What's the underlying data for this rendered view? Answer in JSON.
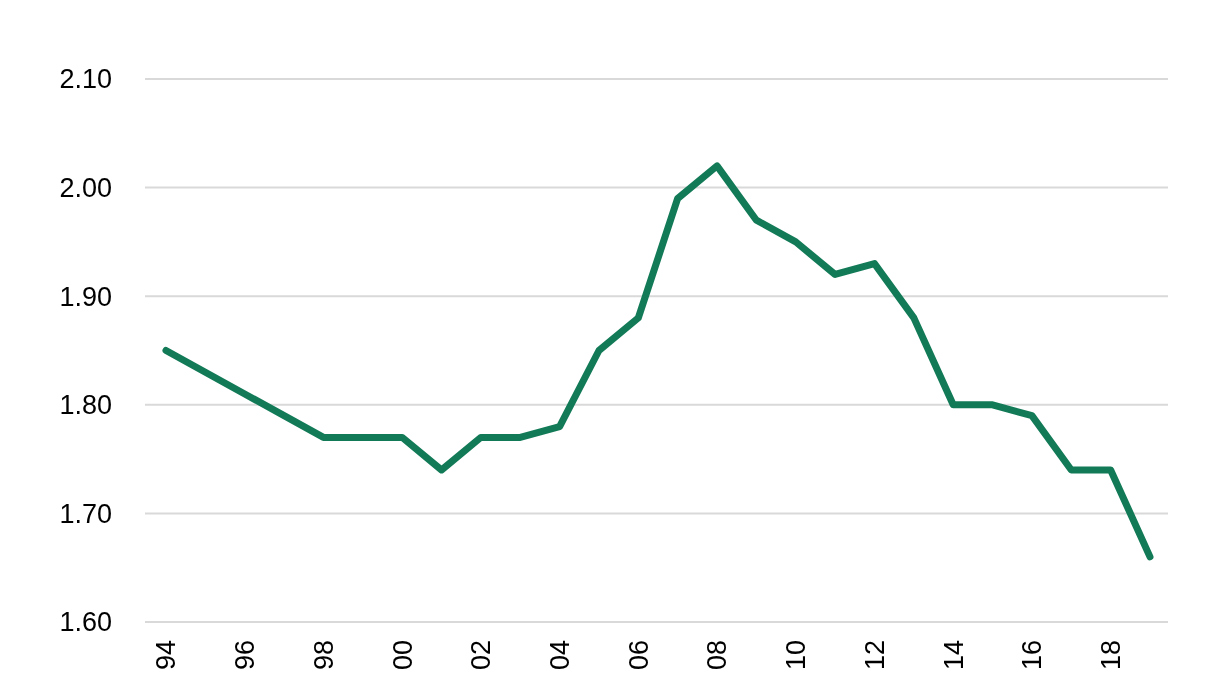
{
  "chart_data": {
    "type": "line",
    "categories": [
      "94",
      null,
      "96",
      null,
      "98",
      null,
      "00",
      null,
      "02",
      null,
      "04",
      null,
      "06",
      null,
      "08",
      null,
      "10",
      null,
      "12",
      null,
      "14",
      null,
      "16",
      null,
      "18",
      null
    ],
    "series": [
      {
        "color": "#127a57",
        "values": [
          1.85,
          1.83,
          1.81,
          1.79,
          1.77,
          1.77,
          1.77,
          1.74,
          1.77,
          1.77,
          1.78,
          1.85,
          1.88,
          1.99,
          2.02,
          1.97,
          1.95,
          1.92,
          1.93,
          1.88,
          1.8,
          1.8,
          1.79,
          1.74,
          1.74,
          1.66
        ]
      }
    ],
    "ylim": [
      1.6,
      2.1
    ],
    "yticks": [
      {
        "value": 1.6,
        "label": "1.60"
      },
      {
        "value": 1.7,
        "label": "1.70"
      },
      {
        "value": 1.8,
        "label": "1.80"
      },
      {
        "value": 1.9,
        "label": "1.90"
      },
      {
        "value": 2.0,
        "label": "2.00"
      },
      {
        "value": 2.1,
        "label": "2.10"
      }
    ],
    "grid": "y",
    "marker": "none",
    "line_style": "solid"
  }
}
